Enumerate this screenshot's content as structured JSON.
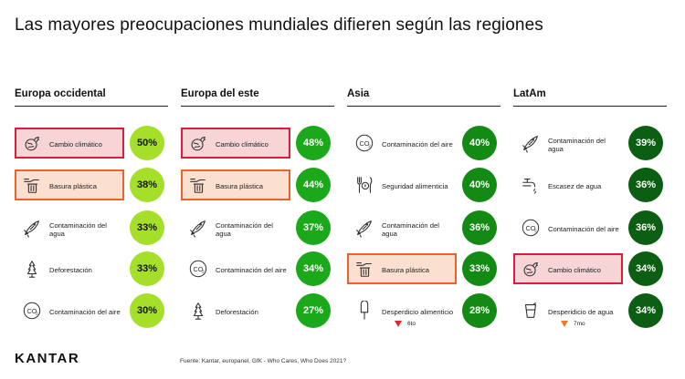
{
  "title": "Las mayores preocupaciones mundiales difieren según las regiones",
  "logo": "KANTAR",
  "source": "Fuente: Kantar, europanel, GfK - Who Cares, Who Does 2021?",
  "colors": {
    "highlight_red": "#d81e3c",
    "highlight_orange": "#e8642a",
    "down_arrow_red": "#e3262e",
    "down_arrow_orange": "#f07a2a"
  },
  "chart_data": [
    {
      "type": "table",
      "title": "Europa occidental",
      "items": [
        {
          "label": "Cambio climático",
          "value": 50,
          "display": "50%",
          "icon": "planet-fire-icon",
          "highlight": "red",
          "fill": "#a6df2a",
          "text_color": "#111111"
        },
        {
          "label": "Basura plástica",
          "value": 38,
          "display": "38%",
          "icon": "trash-hand-icon",
          "highlight": "orange",
          "fill": "#a6df2a",
          "text_color": "#111111"
        },
        {
          "label": "Contaminación del agua",
          "value": 33,
          "display": "33%",
          "icon": "fish-icon",
          "highlight": "",
          "fill": "#a6df2a",
          "text_color": "#111111"
        },
        {
          "label": "Deforestación",
          "value": 33,
          "display": "33%",
          "icon": "tree-icon",
          "highlight": "",
          "fill": "#a6df2a",
          "text_color": "#111111"
        },
        {
          "label": "Contaminación del aire",
          "value": 30,
          "display": "30%",
          "icon": "co2-icon",
          "highlight": "",
          "fill": "#a6df2a",
          "text_color": "#111111"
        }
      ]
    },
    {
      "type": "table",
      "title": "Europa del este",
      "items": [
        {
          "label": "Cambio climático",
          "value": 48,
          "display": "48%",
          "icon": "planet-fire-icon",
          "highlight": "red",
          "fill": "#1ba81b",
          "text_color": "#ffffff"
        },
        {
          "label": "Basura plástica",
          "value": 44,
          "display": "44%",
          "icon": "trash-hand-icon",
          "highlight": "orange",
          "fill": "#1ba81b",
          "text_color": "#ffffff"
        },
        {
          "label": "Contaminación del agua",
          "value": 37,
          "display": "37%",
          "icon": "fish-icon",
          "highlight": "",
          "fill": "#1ba81b",
          "text_color": "#ffffff"
        },
        {
          "label": "Contaminación del aire",
          "value": 34,
          "display": "34%",
          "icon": "co2-icon",
          "highlight": "",
          "fill": "#1ba81b",
          "text_color": "#ffffff"
        },
        {
          "label": "Deforestación",
          "value": 27,
          "display": "27%",
          "icon": "tree-icon",
          "highlight": "",
          "fill": "#1ba81b",
          "text_color": "#ffffff"
        }
      ]
    },
    {
      "type": "table",
      "title": "Asia",
      "items": [
        {
          "label": "Contaminación del aire",
          "value": 40,
          "display": "40%",
          "icon": "co2-icon",
          "highlight": "",
          "fill": "#138a13",
          "text_color": "#ffffff"
        },
        {
          "label": "Seguridad alimenticia",
          "value": 40,
          "display": "40%",
          "icon": "cutlery-icon",
          "highlight": "",
          "fill": "#138a13",
          "text_color": "#ffffff"
        },
        {
          "label": "Contaminación del agua",
          "value": 36,
          "display": "36%",
          "icon": "fish-icon",
          "highlight": "",
          "fill": "#138a13",
          "text_color": "#ffffff"
        },
        {
          "label": "Basura plástica",
          "value": 33,
          "display": "33%",
          "icon": "trash-hand-icon",
          "highlight": "orange",
          "fill": "#138a13",
          "text_color": "#ffffff"
        },
        {
          "label": "Desperdicio alimenticio",
          "value": 28,
          "display": "28%",
          "icon": "popsicle-icon",
          "highlight": "",
          "fill": "#138a13",
          "text_color": "#ffffff"
        }
      ],
      "note": {
        "text": "6to",
        "arrow_color": "#e3262e"
      }
    },
    {
      "type": "table",
      "title": "LatAm",
      "items": [
        {
          "label": "Contaminación del agua",
          "value": 39,
          "display": "39%",
          "icon": "fish-icon",
          "highlight": "",
          "fill": "#0b5e12",
          "text_color": "#ffffff"
        },
        {
          "label": "Escasez de agua",
          "value": 36,
          "display": "36%",
          "icon": "faucet-icon",
          "highlight": "",
          "fill": "#0b5e12",
          "text_color": "#ffffff"
        },
        {
          "label": "Contaminación del aire",
          "value": 36,
          "display": "36%",
          "icon": "co2-icon",
          "highlight": "",
          "fill": "#0b5e12",
          "text_color": "#ffffff"
        },
        {
          "label": "Cambio climático",
          "value": 34,
          "display": "34%",
          "icon": "planet-fire-icon",
          "highlight": "red",
          "fill": "#0b5e12",
          "text_color": "#ffffff"
        },
        {
          "label": "Desperidicio de agua",
          "value": 34,
          "display": "34%",
          "icon": "glass-icon",
          "highlight": "",
          "fill": "#0b5e12",
          "text_color": "#ffffff"
        }
      ],
      "note": {
        "text": "7mo",
        "arrow_color": "#f07a2a"
      }
    }
  ]
}
